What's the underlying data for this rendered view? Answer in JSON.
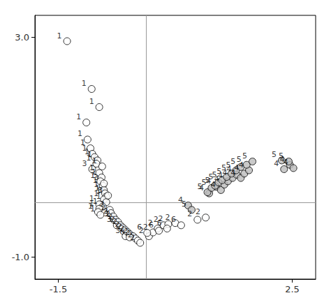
{
  "chart_data": {
    "type": "scatter",
    "x": [
      -1.35,
      -0.93,
      -0.8,
      -1.02,
      -1.0,
      -0.95,
      -0.92,
      -0.88,
      -0.83,
      -0.85,
      -0.75,
      -0.8,
      -0.76,
      -0.78,
      -0.74,
      -0.72,
      -0.7,
      -0.68,
      -0.72,
      -0.68,
      -0.8,
      -0.74,
      -0.8,
      -0.82,
      -0.78,
      -0.92,
      -0.72,
      -0.65,
      -0.55,
      -0.5,
      -0.35,
      -0.62,
      -0.6,
      -0.56,
      -0.52,
      -0.48,
      -0.44,
      -0.4,
      -0.36,
      -0.32,
      -0.28,
      -0.22,
      -0.18,
      -0.14,
      -0.1,
      0.05,
      0.12,
      0.2,
      0.3,
      0.38,
      0.5,
      0.88,
      1.02,
      -0.28,
      0.02,
      0.22,
      0.36,
      0.6,
      0.72,
      1.08,
      1.2,
      1.28,
      1.34,
      1.4,
      1.48,
      1.55,
      1.62,
      1.68,
      1.76,
      2.36,
      2.46,
      2.52,
      0.78,
      1.05,
      1.12,
      1.18,
      1.24,
      1.3,
      1.38,
      1.46,
      1.54,
      1.62,
      1.72,
      1.82,
      2.32,
      2.44
    ],
    "values": [
      2.93,
      2.06,
      1.73,
      1.45,
      1.14,
      0.98,
      0.88,
      0.82,
      0.76,
      0.7,
      0.65,
      0.53,
      0.45,
      0.38,
      0.3,
      0.22,
      0.16,
      0.1,
      0.05,
      0.0,
      -0.04,
      -0.08,
      -0.12,
      -0.18,
      -0.23,
      0.6,
      0.34,
      0.12,
      -0.32,
      -0.42,
      -0.62,
      -0.14,
      -0.2,
      -0.26,
      -0.32,
      -0.36,
      -0.42,
      -0.46,
      -0.5,
      -0.54,
      -0.58,
      -0.62,
      -0.66,
      -0.7,
      -0.74,
      -0.62,
      -0.55,
      -0.48,
      -0.42,
      -0.4,
      -0.38,
      -0.32,
      -0.28,
      -0.64,
      -0.56,
      -0.52,
      -0.48,
      -0.42,
      -0.06,
      0.16,
      0.28,
      0.22,
      0.32,
      0.38,
      0.44,
      0.5,
      0.44,
      0.52,
      0.58,
      0.6,
      0.68,
      0.62,
      -0.14,
      0.18,
      0.26,
      0.3,
      0.36,
      0.4,
      0.46,
      0.52,
      0.58,
      0.64,
      0.68,
      0.74,
      0.76,
      0.74
    ],
    "point_labels": [
      "1",
      "1",
      "1",
      "1",
      "1",
      "1",
      "1",
      "1",
      "1",
      "1",
      "1",
      "1",
      "1",
      "1",
      "1",
      "1",
      "1",
      "1",
      "1",
      "1",
      "1",
      "1",
      "1",
      "1",
      "1",
      "3",
      "3",
      "3",
      "3",
      "3",
      "3",
      "2",
      "2",
      "2",
      "2",
      "2",
      "2",
      "2",
      "2",
      "2",
      "2",
      "2",
      "2",
      "2",
      "2",
      "2",
      "2",
      "2",
      "2",
      "2",
      "2",
      "2",
      "2",
      "6",
      "6",
      "6",
      "6",
      "6",
      "4",
      "4",
      "4",
      "4",
      "4",
      "4",
      "4",
      "4",
      "4",
      "4",
      "4",
      "4",
      "4",
      "4",
      "5",
      "5",
      "5",
      "5",
      "5",
      "5",
      "5",
      "5",
      "5",
      "5",
      "5",
      "5",
      "5",
      "5"
    ],
    "colors": [
      "white",
      "white",
      "white",
      "white",
      "white",
      "white",
      "white",
      "white",
      "white",
      "white",
      "white",
      "white",
      "white",
      "white",
      "white",
      "white",
      "white",
      "white",
      "white",
      "white",
      "white",
      "white",
      "white",
      "white",
      "white",
      "white",
      "white",
      "white",
      "white",
      "white",
      "white",
      "white",
      "white",
      "white",
      "white",
      "white",
      "white",
      "white",
      "white",
      "white",
      "white",
      "white",
      "white",
      "white",
      "white",
      "white",
      "white",
      "white",
      "white",
      "white",
      "white",
      "white",
      "white",
      "white",
      "white",
      "white",
      "white",
      "white",
      "#bbbbbb",
      "#bbbbbb",
      "#bbbbbb",
      "#bbbbbb",
      "#bbbbbb",
      "#bbbbbb",
      "#bbbbbb",
      "#bbbbbb",
      "#bbbbbb",
      "#bbbbbb",
      "#bbbbbb",
      "#bbbbbb",
      "#bbbbbb",
      "#bbbbbb",
      "#bbbbbb",
      "#bbbbbb",
      "#bbbbbb",
      "#bbbbbb",
      "#bbbbbb",
      "#bbbbbb",
      "#bbbbbb",
      "#bbbbbb",
      "#bbbbbb",
      "#bbbbbb",
      "#bbbbbb",
      "#bbbbbb",
      "#bbbbbb",
      "#bbbbbb"
    ],
    "xlim": [
      -1.9,
      2.9
    ],
    "ylim": [
      -1.4,
      3.4
    ],
    "xticks": [
      -1.5,
      2.5
    ],
    "yticks": [
      {
        "value": -1.0,
        "label": "-1.0"
      },
      {
        "value": 3.0,
        "label": "3.0"
      }
    ],
    "hlines": [
      0
    ],
    "vlines": [
      0
    ],
    "grid": false
  }
}
